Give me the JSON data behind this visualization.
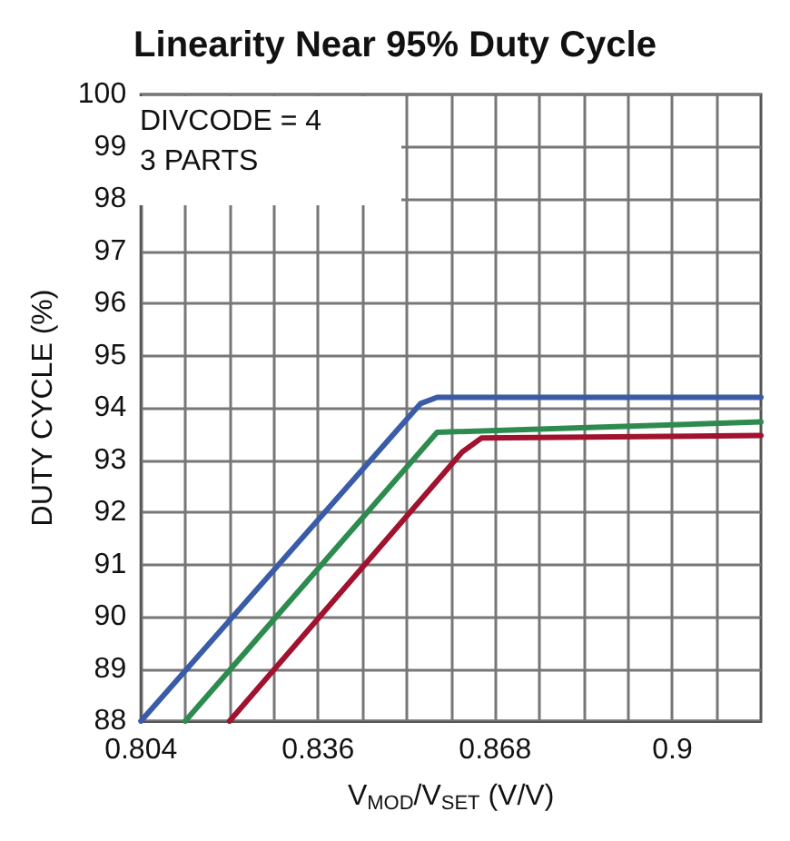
{
  "chart_data": {
    "type": "line",
    "title": "Linearity Near 95% Duty Cycle",
    "xlabel": "V$_{MOD}$/V$_{SET}$ (V/V)",
    "ylabel": "DUTY CYCLE (%)",
    "annotations": [
      "DIVCODE = 4",
      "3 PARTS"
    ],
    "xlim": [
      0.804,
      0.916
    ],
    "ylim": [
      88,
      100
    ],
    "xticks": [
      0.804,
      {
        "value": 0.812,
        "label": null
      },
      {
        "value": 0.82,
        "label": null
      },
      {
        "value": 0.828,
        "label": null
      },
      0.836,
      {
        "value": 0.844,
        "label": null
      },
      {
        "value": 0.852,
        "label": null
      },
      {
        "value": 0.86,
        "label": null
      },
      0.868,
      {
        "value": 0.876,
        "label": null
      },
      {
        "value": 0.884,
        "label": null
      },
      {
        "value": 0.892,
        "label": null
      },
      0.9,
      {
        "value": 0.908,
        "label": null
      }
    ],
    "yticks": [
      88,
      89,
      90,
      91,
      92,
      93,
      94,
      95,
      96,
      97,
      98,
      99,
      100
    ],
    "grid": true,
    "marker": "none",
    "line_style": "solid",
    "series": [
      {
        "color": "#3a5ca8",
        "x": [
          0.804,
          0.8545,
          0.8575,
          0.916
        ],
        "values": [
          88,
          94.08,
          94.2,
          94.2
        ]
      },
      {
        "color": "#2e8b4f",
        "x": [
          0.812,
          0.8575,
          0.916
        ],
        "values": [
          88,
          93.53,
          93.73
        ]
      },
      {
        "color": "#a0122e",
        "x": [
          0.82,
          0.862,
          0.8655,
          0.916
        ],
        "values": [
          88,
          93.15,
          93.42,
          93.47
        ]
      }
    ]
  }
}
